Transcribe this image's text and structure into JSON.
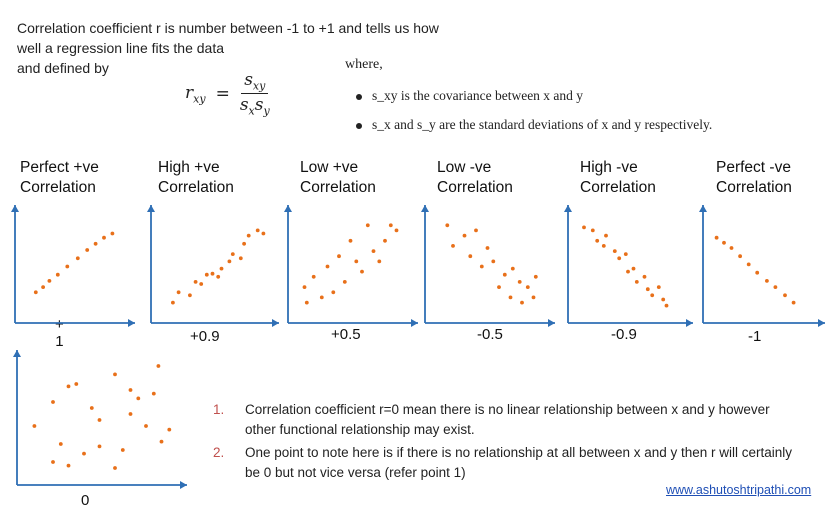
{
  "intro": {
    "line1": "Correlation coefficient r is number between -1 to +1 and tells us how",
    "line2": "well a regression line fits the data",
    "line3": "and defined by"
  },
  "formula": {
    "lhs": "r",
    "lhs_sub": "xy",
    "equals": "=",
    "num": "s",
    "num_sub": "xy",
    "den_a": "s",
    "den_a_sub": "x",
    "den_b": "s",
    "den_b_sub": "y"
  },
  "where": {
    "label": "where,",
    "bullet1": "s_xy is the covariance between x and y",
    "bullet2": "s_x and s_y are the standard deviations of x and y respectively."
  },
  "colors": {
    "point": "#e8701a",
    "axis": "#2f6fb5",
    "note_number": "#c0504d",
    "link": "#1f4fb5"
  },
  "panels": [
    {
      "label1": "Perfect +ve",
      "label2": "Correlation",
      "value": "+\n1",
      "points": [
        [
          0.15,
          0.25
        ],
        [
          0.22,
          0.3
        ],
        [
          0.28,
          0.36
        ],
        [
          0.36,
          0.42
        ],
        [
          0.45,
          0.5
        ],
        [
          0.55,
          0.58
        ],
        [
          0.64,
          0.66
        ],
        [
          0.72,
          0.72
        ],
        [
          0.8,
          0.78
        ],
        [
          0.88,
          0.82
        ]
      ]
    },
    {
      "label1": "High +ve",
      "label2": "Correlation",
      "value": "+0.9",
      "points": [
        [
          0.15,
          0.15
        ],
        [
          0.2,
          0.25
        ],
        [
          0.3,
          0.22
        ],
        [
          0.35,
          0.35
        ],
        [
          0.4,
          0.33
        ],
        [
          0.45,
          0.42
        ],
        [
          0.5,
          0.43
        ],
        [
          0.55,
          0.4
        ],
        [
          0.58,
          0.48
        ],
        [
          0.65,
          0.55
        ],
        [
          0.68,
          0.62
        ],
        [
          0.75,
          0.58
        ],
        [
          0.78,
          0.72
        ],
        [
          0.82,
          0.8
        ],
        [
          0.9,
          0.85
        ],
        [
          0.95,
          0.82
        ]
      ]
    },
    {
      "label1": "Low +ve",
      "label2": "Correlation",
      "value": "+0.5",
      "points": [
        [
          0.1,
          0.3
        ],
        [
          0.12,
          0.15
        ],
        [
          0.18,
          0.4
        ],
        [
          0.25,
          0.2
        ],
        [
          0.3,
          0.5
        ],
        [
          0.35,
          0.25
        ],
        [
          0.4,
          0.6
        ],
        [
          0.45,
          0.35
        ],
        [
          0.5,
          0.75
        ],
        [
          0.55,
          0.55
        ],
        [
          0.6,
          0.45
        ],
        [
          0.65,
          0.9
        ],
        [
          0.7,
          0.65
        ],
        [
          0.75,
          0.55
        ],
        [
          0.8,
          0.75
        ],
        [
          0.85,
          0.9
        ],
        [
          0.9,
          0.85
        ]
      ]
    },
    {
      "label1": "Low -ve",
      "label2": "Correlation",
      "value": "-0.5",
      "points": [
        [
          0.15,
          0.9
        ],
        [
          0.2,
          0.7
        ],
        [
          0.3,
          0.8
        ],
        [
          0.35,
          0.6
        ],
        [
          0.4,
          0.85
        ],
        [
          0.45,
          0.5
        ],
        [
          0.5,
          0.68
        ],
        [
          0.55,
          0.55
        ],
        [
          0.6,
          0.3
        ],
        [
          0.65,
          0.42
        ],
        [
          0.7,
          0.2
        ],
        [
          0.72,
          0.48
        ],
        [
          0.78,
          0.35
        ],
        [
          0.8,
          0.15
        ],
        [
          0.85,
          0.3
        ],
        [
          0.9,
          0.2
        ],
        [
          0.92,
          0.4
        ]
      ]
    },
    {
      "label1": "High -ve",
      "label2": "Correlation",
      "value": "-0.9",
      "points": [
        [
          0.1,
          0.88
        ],
        [
          0.18,
          0.85
        ],
        [
          0.22,
          0.75
        ],
        [
          0.28,
          0.7
        ],
        [
          0.3,
          0.8
        ],
        [
          0.38,
          0.65
        ],
        [
          0.42,
          0.58
        ],
        [
          0.48,
          0.62
        ],
        [
          0.5,
          0.45
        ],
        [
          0.55,
          0.48
        ],
        [
          0.58,
          0.35
        ],
        [
          0.65,
          0.4
        ],
        [
          0.68,
          0.28
        ],
        [
          0.72,
          0.22
        ],
        [
          0.78,
          0.3
        ],
        [
          0.82,
          0.18
        ],
        [
          0.85,
          0.12
        ]
      ]
    },
    {
      "label1": "Perfect -ve",
      "label2": "Correlation",
      "value": "-1",
      "points": [
        [
          0.08,
          0.78
        ],
        [
          0.15,
          0.73
        ],
        [
          0.22,
          0.68
        ],
        [
          0.3,
          0.6
        ],
        [
          0.38,
          0.52
        ],
        [
          0.46,
          0.44
        ],
        [
          0.55,
          0.36
        ],
        [
          0.63,
          0.3
        ],
        [
          0.72,
          0.22
        ],
        [
          0.8,
          0.15
        ]
      ]
    },
    {
      "label1": "",
      "label2": "",
      "value": "0",
      "points": [
        [
          0.08,
          0.45
        ],
        [
          0.2,
          0.65
        ],
        [
          0.3,
          0.78
        ],
        [
          0.35,
          0.8
        ],
        [
          0.45,
          0.6
        ],
        [
          0.6,
          0.88
        ],
        [
          0.7,
          0.75
        ],
        [
          0.75,
          0.68
        ],
        [
          0.88,
          0.95
        ],
        [
          0.25,
          0.3
        ],
        [
          0.4,
          0.22
        ],
        [
          0.5,
          0.5
        ],
        [
          0.65,
          0.25
        ],
        [
          0.7,
          0.55
        ],
        [
          0.8,
          0.45
        ],
        [
          0.9,
          0.32
        ],
        [
          0.95,
          0.42
        ],
        [
          0.2,
          0.15
        ],
        [
          0.6,
          0.1
        ],
        [
          0.3,
          0.12
        ],
        [
          0.5,
          0.28
        ],
        [
          0.85,
          0.72
        ]
      ]
    }
  ],
  "notes": [
    {
      "num": "1.",
      "text": "Correlation coefficient r=0 mean there is no linear relationship between x and y however other functional relationship may exist."
    },
    {
      "num": "2.",
      "text": "One point to note here is if there is no relationship at all between x and y then r will certainly be 0 but not vice versa (refer point 1)"
    }
  ],
  "site": "www.ashutoshtripathi.com"
}
